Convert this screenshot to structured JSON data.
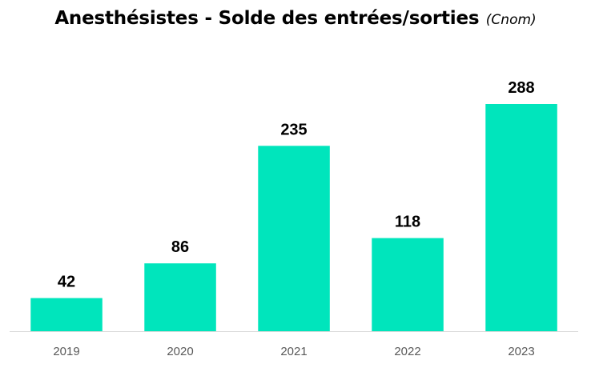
{
  "chart_data": {
    "type": "bar",
    "title": "Anesthésistes - Solde des entrées/sorties",
    "subtitle": "(Cnom)",
    "categories": [
      "2019",
      "2020",
      "2021",
      "2022",
      "2023"
    ],
    "values": [
      42,
      86,
      235,
      118,
      288
    ],
    "data_labels": [
      "42",
      "86",
      "235",
      "118",
      "288"
    ],
    "xlabel": "",
    "ylabel": "",
    "ylim": [
      0,
      288
    ],
    "grid": false,
    "legend": "none",
    "bar_color": "#00E5BC",
    "axis_color": "#D9D9D9"
  }
}
